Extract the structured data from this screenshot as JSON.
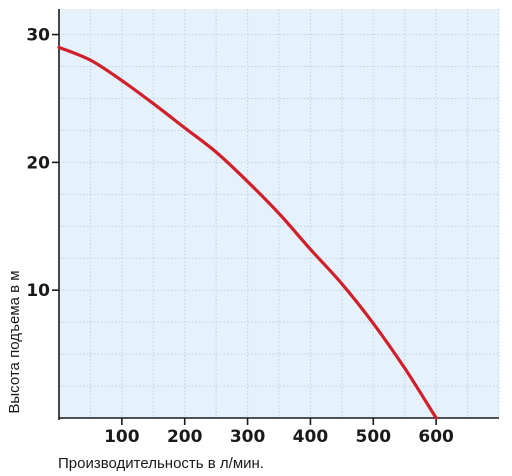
{
  "chart_data": {
    "type": "line",
    "xlabel": "Производительность в л/мин.",
    "ylabel": "Высота подъема в м",
    "xlim": [
      0,
      700
    ],
    "ylim": [
      0,
      32
    ],
    "x_ticks": [
      {
        "value": 100,
        "label": "100"
      },
      {
        "value": 200,
        "label": "200"
      },
      {
        "value": 300,
        "label": "300"
      },
      {
        "value": 400,
        "label": "400"
      },
      {
        "value": 500,
        "label": "500"
      },
      {
        "value": 600,
        "label": "600"
      }
    ],
    "y_ticks": [
      {
        "value": 10,
        "label": "10"
      },
      {
        "value": 20,
        "label": "20"
      },
      {
        "value": 30,
        "label": "30"
      }
    ],
    "x_grid_step": 50,
    "y_grid_step": 2.5,
    "grid": true,
    "series": [
      {
        "color": "#d01f2a",
        "x": [
          0,
          50,
          100,
          150,
          200,
          250,
          300,
          350,
          400,
          450,
          500,
          550,
          600
        ],
        "y": [
          29,
          28,
          26.4,
          24.6,
          22.7,
          20.8,
          18.5,
          16.0,
          13.2,
          10.5,
          7.4,
          3.9,
          0
        ]
      }
    ],
    "colors": {
      "plot_background": "#e6f2fb",
      "grid": "#b8d3e8",
      "axis": "#1a1a1a",
      "line": "#d01f2a"
    }
  }
}
